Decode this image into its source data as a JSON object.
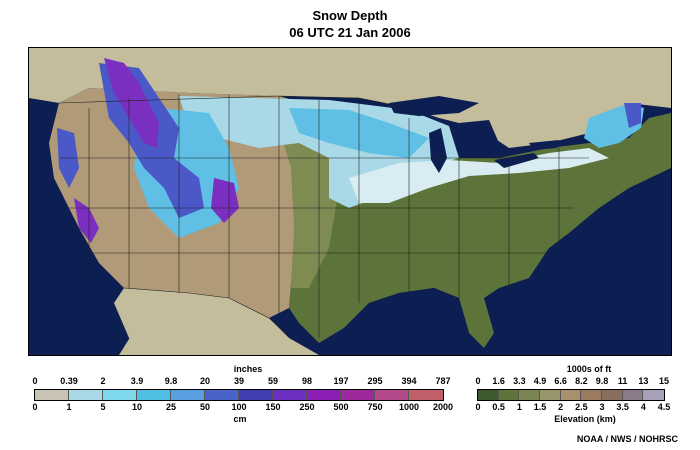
{
  "title": "Snow Depth",
  "subtitle": "06 UTC  21 Jan 2006",
  "snow_legend": {
    "unit_top": "inches",
    "unit_bottom": "cm",
    "inch_ticks": [
      "0",
      "0.39",
      "2",
      "3.9",
      "9.8",
      "20",
      "39",
      "59",
      "98",
      "197",
      "295",
      "394",
      "787"
    ],
    "cm_ticks": [
      "0",
      "1",
      "5",
      "10",
      "25",
      "50",
      "100",
      "150",
      "250",
      "500",
      "750",
      "1000",
      "2000"
    ],
    "colors": [
      "#c8c3b4",
      "#a9d9e6",
      "#7fd7ec",
      "#4fbfe3",
      "#5aa0e0",
      "#4a63c9",
      "#3f3fb2",
      "#6d2fc0",
      "#8b1fb8",
      "#9c2a9c",
      "#b34a8a",
      "#c0606a"
    ]
  },
  "elev_legend": {
    "unit_top": "1000s of ft",
    "unit_bottom": "Elevation (km)",
    "ft_ticks": [
      "0",
      "1.6",
      "3.3",
      "4.9",
      "6.6",
      "8.2",
      "9.8",
      "11",
      "13",
      "15"
    ],
    "km_ticks": [
      "0",
      "0.5",
      "1",
      "1.5",
      "2",
      "2.5",
      "3",
      "3.5",
      "4",
      "4.5"
    ],
    "colors": [
      "#3f5a2c",
      "#5e7438",
      "#7a8550",
      "#98956a",
      "#a88f6e",
      "#9c7a5d",
      "#8a6f5e",
      "#8a7a8a",
      "#a8a0b8"
    ]
  },
  "credit": "NOAA / NWS / NOHRSC",
  "map": {
    "colors": {
      "ocean": "#0c1e52",
      "land_outside": "#c4bd9b",
      "lowland": "#5c7339",
      "plains": "#7e8b52",
      "highland": "#b09a78",
      "light_snow": "#a9d9e6",
      "mid_snow": "#5fbfe4",
      "deep_snow": "#4a58c8",
      "very_deep_snow": "#7b2fc0",
      "border": "#222222"
    }
  }
}
